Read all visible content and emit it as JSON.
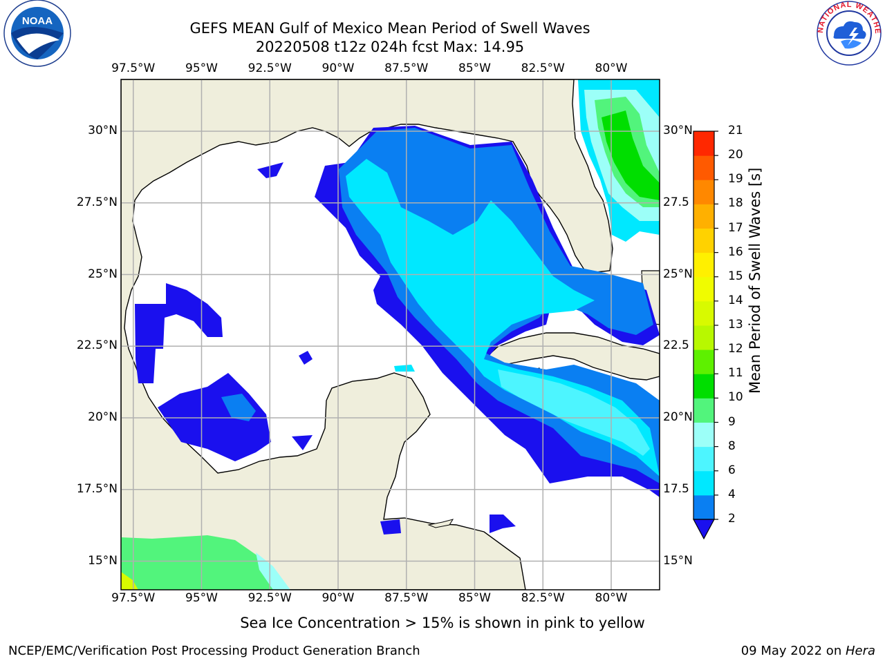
{
  "title_line1": "GEFS MEAN Gulf of Mexico Mean Period of Swell Waves",
  "title_line2": "20220508 t12z 024h fcst   Max: 14.95",
  "left_logo": {
    "text": "NOAA",
    "ring_text": "NATIONAL OCEANIC AND ATMOSPHERIC ADMINISTRATION",
    "bottom_text": "U.S. DEPARTMENT OF COMMERCE"
  },
  "right_logo": {
    "ring_text": "NATIONAL WEATHER SERVICE"
  },
  "map": {
    "lon_ticks": [
      {
        "value": -97.5,
        "label": "97.5°W"
      },
      {
        "value": -95,
        "label": "95°W"
      },
      {
        "value": -92.5,
        "label": "92.5°W"
      },
      {
        "value": -90,
        "label": "90°W"
      },
      {
        "value": -87.5,
        "label": "87.5°W"
      },
      {
        "value": -85,
        "label": "85°W"
      },
      {
        "value": -82.5,
        "label": "82.5°W"
      },
      {
        "value": -80,
        "label": "80°W"
      }
    ],
    "lat_ticks": [
      {
        "value": 30,
        "label": "30°N"
      },
      {
        "value": 27.5,
        "label": "27.5°N"
      },
      {
        "value": 25,
        "label": "25°N"
      },
      {
        "value": 22.5,
        "label": "22.5°N"
      },
      {
        "value": 20,
        "label": "20°N"
      },
      {
        "value": 17.5,
        "label": "17.5°N"
      },
      {
        "value": 15,
        "label": "15°N"
      }
    ],
    "right_lat_ticks": [
      {
        "value": 30,
        "label": "30°N"
      },
      {
        "value": 27.5,
        "label": "27.5"
      },
      {
        "value": 25,
        "label": "25°N"
      },
      {
        "value": 22.5,
        "label": "22.5"
      },
      {
        "value": 20,
        "label": "20°N"
      },
      {
        "value": 17.5,
        "label": "17.5"
      },
      {
        "value": 15,
        "label": "15°N"
      }
    ],
    "land_color": "#efeedc",
    "ocean_color": "#ffffff",
    "grid_color": "#b0b0b0"
  },
  "colorbar": {
    "label": "Mean Period of Swell Waves [s]",
    "levels": [
      "2",
      "4",
      "6",
      "8",
      "9",
      "10",
      "11",
      "12",
      "13",
      "14",
      "15",
      "16",
      "17",
      "18",
      "19",
      "20",
      "21"
    ],
    "colors": [
      "#0a7ff2",
      "#00e8ff",
      "#4df5ff",
      "#9cfff8",
      "#52f47c",
      "#00de00",
      "#5ef000",
      "#b8f800",
      "#d8fa00",
      "#f0fc00",
      "#fff000",
      "#ffd200",
      "#ffb000",
      "#ff8800",
      "#ff5a00",
      "#ff2800"
    ],
    "under_color": "#1a10ee"
  },
  "subnote": "Sea Ice Concentration > 15% is shown in pink to yellow",
  "footer_left": "NCEP/EMC/Verification Post Processing Product Generation Branch",
  "footer_right_date": "09 May 2022 on ",
  "footer_right_host": "Hera"
}
